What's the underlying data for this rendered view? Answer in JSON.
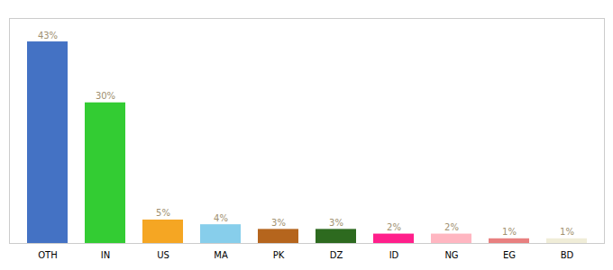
{
  "chart_data": {
    "type": "bar",
    "categories": [
      "OTH",
      "IN",
      "US",
      "MA",
      "PK",
      "DZ",
      "ID",
      "NG",
      "EG",
      "BD"
    ],
    "values": [
      43,
      30,
      5,
      4,
      3,
      3,
      2,
      2,
      1,
      1
    ],
    "value_labels": [
      "43%",
      "30%",
      "5%",
      "4%",
      "3%",
      "3%",
      "2%",
      "2%",
      "1%",
      "1%"
    ],
    "colors": [
      "#4472c4",
      "#33cc33",
      "#f5a623",
      "#87ceeb",
      "#b5651d",
      "#2d6a1f",
      "#ff1f8b",
      "#ffb6c1",
      "#e88080",
      "#f0edd8"
    ],
    "ylim": [
      0,
      48
    ],
    "data_labels": true,
    "tick_labels": "x"
  }
}
